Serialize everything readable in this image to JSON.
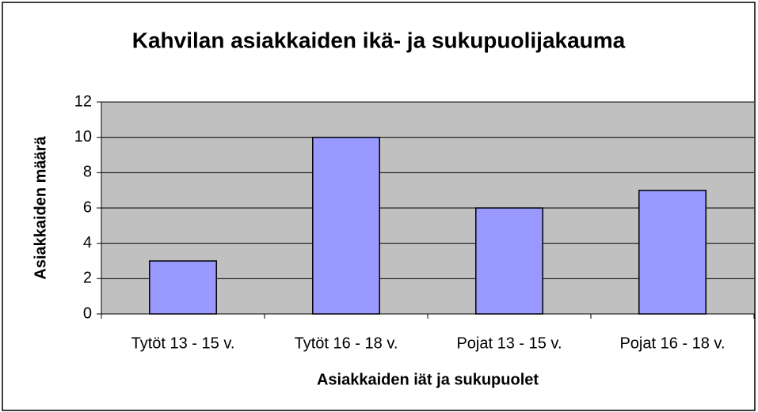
{
  "chart_data": {
    "type": "bar",
    "title": "Kahvilan asiakkaiden ikä- ja sukupuolijakauma",
    "xlabel": "Asiakkaiden iät ja sukupuolet",
    "ylabel": "Asiakkaiden määrä",
    "categories": [
      "Tytöt 13 - 15 v.",
      "Tytöt 16 - 18 v.",
      "Pojat 13 - 15 v.",
      "Pojat 16 - 18 v."
    ],
    "values": [
      3,
      10,
      6,
      7
    ],
    "color": "#9999ff",
    "ylim": [
      0,
      12
    ],
    "yticks": [
      0,
      2,
      4,
      6,
      8,
      10,
      12
    ],
    "grid": true
  }
}
